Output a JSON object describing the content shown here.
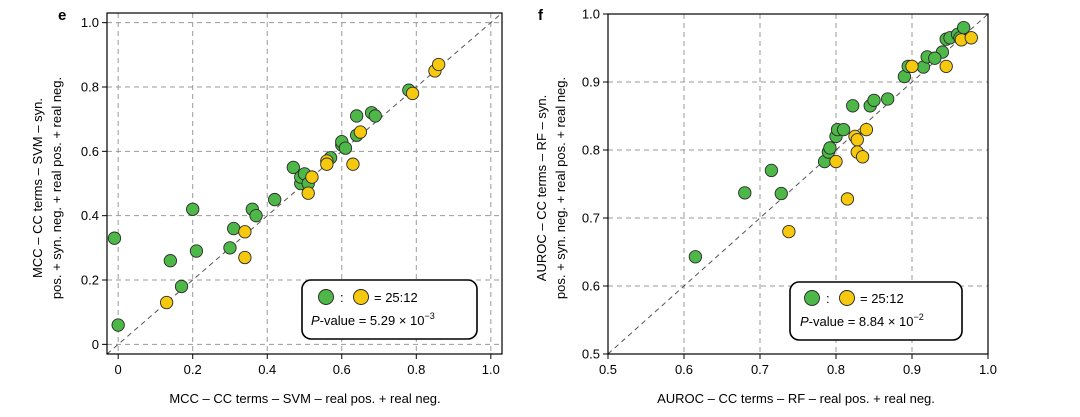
{
  "chart_data": [
    {
      "panel": "e",
      "type": "scatter",
      "xlabel": "MCC – CC terms – SVM – real pos. + real neg.",
      "ylabel": [
        "MCC – CC terms – SVM – syn.",
        "pos. + syn. neg. + real pos. + real neg."
      ],
      "xlim": [
        -0.03,
        1.03
      ],
      "ylim": [
        -0.03,
        1.03
      ],
      "xticks": [
        0,
        0.2,
        0.4,
        0.6,
        0.8,
        1.0
      ],
      "yticks": [
        0,
        0.2,
        0.4,
        0.6,
        0.8,
        1.0
      ],
      "xtick_labels": [
        "0",
        "0.2",
        "0.4",
        "0.6",
        "0.8",
        "1.0"
      ],
      "ytick_labels": [
        "0",
        "0.2",
        "0.4",
        "0.6",
        "0.8",
        "1.0"
      ],
      "grid": true,
      "diagonal": true,
      "legend": {
        "position": "bottom-right",
        "sep": ":",
        "ratio": "= 25:12",
        "pvalue_prefix": "-value = ",
        "pvalue_italic": "P",
        "pvalue_mant": "5.29 × 10",
        "pvalue_exp": "−3"
      },
      "series": [
        {
          "name": "green",
          "color": "#4db848",
          "points": [
            [
              -0.01,
              0.33
            ],
            [
              0.0,
              0.06
            ],
            [
              0.14,
              0.26
            ],
            [
              0.17,
              0.18
            ],
            [
              0.2,
              0.42
            ],
            [
              0.21,
              0.29
            ],
            [
              0.3,
              0.3
            ],
            [
              0.31,
              0.36
            ],
            [
              0.36,
              0.42
            ],
            [
              0.37,
              0.4
            ],
            [
              0.42,
              0.45
            ],
            [
              0.47,
              0.55
            ],
            [
              0.49,
              0.5
            ],
            [
              0.49,
              0.52
            ],
            [
              0.5,
              0.53
            ],
            [
              0.51,
              0.5
            ],
            [
              0.57,
              0.58
            ],
            [
              0.6,
              0.62
            ],
            [
              0.6,
              0.63
            ],
            [
              0.61,
              0.61
            ],
            [
              0.64,
              0.65
            ],
            [
              0.64,
              0.71
            ],
            [
              0.68,
              0.72
            ],
            [
              0.69,
              0.71
            ],
            [
              0.78,
              0.79
            ]
          ]
        },
        {
          "name": "yellow",
          "color": "#f6c90e",
          "points": [
            [
              0.13,
              0.13
            ],
            [
              0.34,
              0.35
            ],
            [
              0.34,
              0.27
            ],
            [
              0.51,
              0.47
            ],
            [
              0.52,
              0.52
            ],
            [
              0.56,
              0.57
            ],
            [
              0.63,
              0.56
            ],
            [
              0.79,
              0.78
            ],
            [
              0.85,
              0.85
            ],
            [
              0.86,
              0.87
            ],
            [
              0.56,
              0.56
            ],
            [
              0.65,
              0.66
            ]
          ]
        }
      ]
    },
    {
      "panel": "f",
      "type": "scatter",
      "xlabel": "AUROC – CC terms – RF – real pos. + real neg.",
      "ylabel": [
        "AUROC – CC terms – RF – syn.",
        "pos. + syn. neg. + real pos. + real neg."
      ],
      "xlim": [
        0.5,
        1.0
      ],
      "ylim": [
        0.5,
        1.0
      ],
      "xticks": [
        0.5,
        0.6,
        0.7,
        0.8,
        0.9,
        1.0
      ],
      "yticks": [
        0.5,
        0.6,
        0.7,
        0.8,
        0.9,
        1.0
      ],
      "xtick_labels": [
        "0.5",
        "0.6",
        "0.7",
        "0.8",
        "0.9",
        "1.0"
      ],
      "ytick_labels": [
        "0.5",
        "0.6",
        "0.7",
        "0.8",
        "0.9",
        "1.0"
      ],
      "grid": true,
      "diagonal": true,
      "legend": {
        "position": "bottom-right",
        "sep": ":",
        "ratio": "= 25:12",
        "pvalue_prefix": "-value = ",
        "pvalue_italic": "P",
        "pvalue_mant": "8.84 × 10",
        "pvalue_exp": "−2"
      },
      "series": [
        {
          "name": "green",
          "color": "#4db848",
          "points": [
            [
              0.615,
              0.643
            ],
            [
              0.68,
              0.737
            ],
            [
              0.715,
              0.77
            ],
            [
              0.728,
              0.736
            ],
            [
              0.785,
              0.783
            ],
            [
              0.79,
              0.797
            ],
            [
              0.792,
              0.803
            ],
            [
              0.8,
              0.82
            ],
            [
              0.802,
              0.83
            ],
            [
              0.81,
              0.83
            ],
            [
              0.822,
              0.865
            ],
            [
              0.845,
              0.865
            ],
            [
              0.85,
              0.873
            ],
            [
              0.868,
              0.875
            ],
            [
              0.89,
              0.908
            ],
            [
              0.895,
              0.923
            ],
            [
              0.915,
              0.922
            ],
            [
              0.92,
              0.937
            ],
            [
              0.94,
              0.944
            ],
            [
              0.945,
              0.963
            ],
            [
              0.95,
              0.965
            ],
            [
              0.96,
              0.97
            ],
            [
              0.963,
              0.965
            ],
            [
              0.968,
              0.98
            ],
            [
              0.93,
              0.935
            ]
          ]
        },
        {
          "name": "yellow",
          "color": "#f6c90e",
          "points": [
            [
              0.738,
              0.68
            ],
            [
              0.8,
              0.783
            ],
            [
              0.815,
              0.728
            ],
            [
              0.825,
              0.82
            ],
            [
              0.828,
              0.815
            ],
            [
              0.828,
              0.797
            ],
            [
              0.835,
              0.79
            ],
            [
              0.84,
              0.83
            ],
            [
              0.9,
              0.923
            ],
            [
              0.945,
              0.923
            ],
            [
              0.965,
              0.962
            ],
            [
              0.978,
              0.965
            ]
          ]
        }
      ]
    }
  ]
}
